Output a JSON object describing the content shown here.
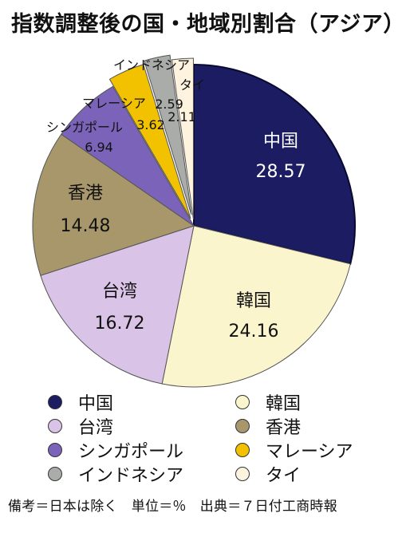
{
  "title": "指数調整後の国・地域別割合（アジア）",
  "chart_data": {
    "type": "pie",
    "title": "指数調整後の国・地域別割合（アジア）",
    "unit": "%",
    "slices": [
      {
        "label": "中国",
        "value": 28.57,
        "value_label": "28.57",
        "color": "#1c1c63"
      },
      {
        "label": "韓国",
        "value": 24.16,
        "value_label": "24.16",
        "color": "#fbf5ce"
      },
      {
        "label": "台湾",
        "value": 16.72,
        "value_label": "16.72",
        "color": "#d9c3e6"
      },
      {
        "label": "香港",
        "value": 14.48,
        "value_label": "14.48",
        "color": "#a8976a"
      },
      {
        "label": "シンガポール",
        "value": 6.94,
        "value_label": "6.94",
        "color": "#7a63b8"
      },
      {
        "label": "マレーシア",
        "value": 3.62,
        "value_label": "3.62",
        "color": "#f2c200"
      },
      {
        "label": "インドネシア",
        "value": 2.59,
        "value_label": "2.59",
        "color": "#a9aca9"
      },
      {
        "label": "タイ",
        "value": 2.11,
        "value_label": "2.11",
        "color": "#fdf3df"
      }
    ],
    "legend_position": "bottom"
  },
  "legend": [
    {
      "label": "中国",
      "color": "#1c1c63"
    },
    {
      "label": "韓国",
      "color": "#fbf5ce"
    },
    {
      "label": "台湾",
      "color": "#d9c3e6"
    },
    {
      "label": "香港",
      "color": "#a8976a"
    },
    {
      "label": "シンガポール",
      "color": "#7a63b8"
    },
    {
      "label": "マレーシア",
      "color": "#f2c200"
    },
    {
      "label": "インドネシア",
      "color": "#a9aca9"
    },
    {
      "label": "タイ",
      "color": "#fdf3df"
    }
  ],
  "footer": "備考＝日本は除く　単位＝％　出典＝７日付工商時報"
}
